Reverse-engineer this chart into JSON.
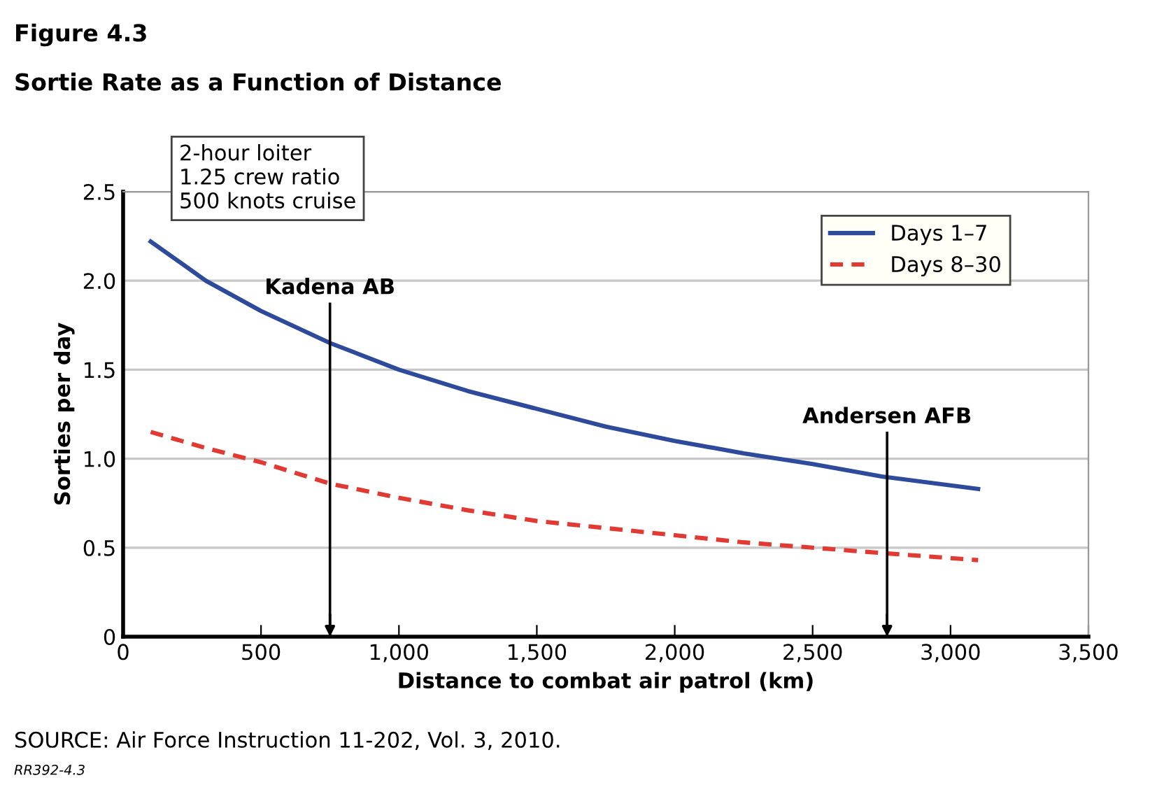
{
  "chart_data": {
    "type": "line",
    "title": "Figure 4.3",
    "subtitle": "Sortie Rate as a Function of Distance",
    "xlabel": "Distance to combat air patrol (km)",
    "ylabel": "Sorties per day",
    "series": [
      {
        "name": "Days 1–7",
        "color": "#2e4a9b",
        "line_style": "solid",
        "x": [
          100,
          300,
          500,
          750,
          1000,
          1250,
          1500,
          1750,
          2000,
          2250,
          2500,
          2750,
          3100
        ],
        "values": [
          2.22,
          2.0,
          1.83,
          1.65,
          1.5,
          1.38,
          1.28,
          1.18,
          1.1,
          1.03,
          0.97,
          0.9,
          0.83
        ]
      },
      {
        "name": "Days 8–30",
        "color": "#e03a32",
        "line_style": "dashed",
        "x": [
          100,
          300,
          500,
          750,
          1000,
          1250,
          1500,
          1750,
          2000,
          2250,
          2500,
          2750,
          3100
        ],
        "values": [
          1.15,
          1.06,
          0.98,
          0.86,
          0.78,
          0.71,
          0.65,
          0.61,
          0.57,
          0.53,
          0.5,
          0.47,
          0.43
        ]
      }
    ],
    "xlim": [
      0,
      3500
    ],
    "ylim": [
      0,
      2.5
    ],
    "xticks": [
      0,
      500,
      {
        "value": 1000,
        "label": "1,000"
      },
      {
        "value": 1500,
        "label": "1,500"
      },
      {
        "value": 2000,
        "label": "2,000"
      },
      {
        "value": 2500,
        "label": "2,500"
      },
      {
        "value": 3000,
        "label": "3,000"
      },
      {
        "value": 3500,
        "label": "3,500"
      }
    ],
    "yticks": [
      0,
      0.5,
      {
        "value": 1,
        "label": "1.0"
      },
      1.5,
      {
        "value": 2,
        "label": "2.0"
      },
      2.5
    ],
    "grid": "y",
    "legend": "top right",
    "ref_lines": [
      {
        "axis": "x",
        "value": 750,
        "label": "Kadena AB"
      },
      {
        "axis": "x",
        "value": 2770,
        "label": "Andersen AFB"
      }
    ],
    "annotations": [
      "2-hour loiter\n1.25 crew ratio\n500 knots cruise",
      "SOURCE: Air Force Instruction 11-202, Vol. 3, 2010.",
      "RR392-4.3"
    ]
  }
}
